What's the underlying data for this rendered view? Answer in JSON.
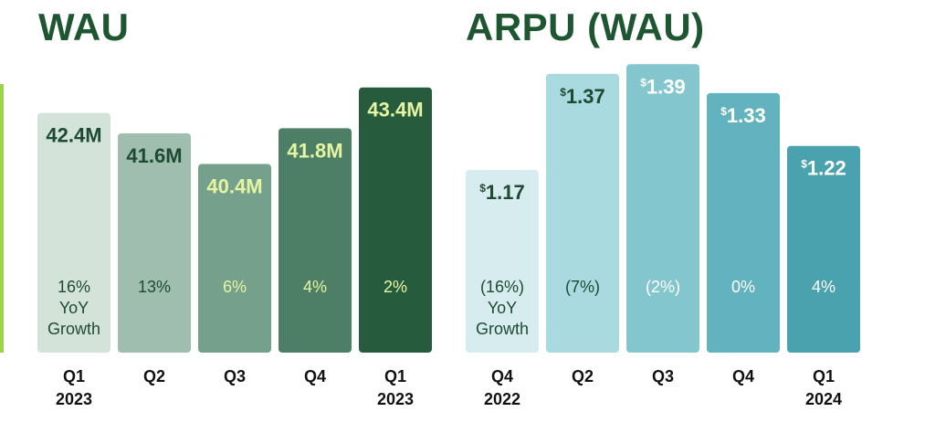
{
  "colors": {
    "title": "#1f5632",
    "accent_line": "#9bd34a",
    "wau_bars": [
      "#d4e3da",
      "#a0beb0",
      "#75a08b",
      "#4c7f66",
      "#265c3d"
    ],
    "wau_value_text": [
      "#1e4a33",
      "#1e4a33",
      "#e6f5a2",
      "#e6f5a2",
      "#e6f5a2"
    ],
    "wau_growth_text": [
      "#1e4a33",
      "#1e4a33",
      "#e6f5a2",
      "#e6f5a2",
      "#e6f5a2"
    ],
    "arpu_bars": [
      "#d6ecef",
      "#a9dae0",
      "#84c6ce",
      "#62b3bf",
      "#4aa2ae"
    ],
    "arpu_value_text": [
      "#1e4a33",
      "#1e4a33",
      "#ffffff",
      "#ffffff",
      "#ffffff"
    ],
    "arpu_growth_text": [
      "#1e4a33",
      "#1e4a33",
      "#ffffff",
      "#ffffff",
      "#ffffff"
    ]
  },
  "chart_data": [
    {
      "type": "bar",
      "title": "WAU",
      "categories": [
        "Q1\n2023",
        "Q2",
        "Q3",
        "Q4",
        "Q1\n2023"
      ],
      "values": [
        42.4,
        41.6,
        40.4,
        41.8,
        43.4
      ],
      "value_labels": [
        "42.4M",
        "41.6M",
        "40.4M",
        "41.8M",
        "43.4M"
      ],
      "growth_labels": [
        "16%\nYoY\nGrowth",
        "13%",
        "6%",
        "4%",
        "2%"
      ],
      "ylim": [
        33.0,
        44.5
      ],
      "grid": false
    },
    {
      "type": "bar",
      "title": "ARPU (WAU)",
      "categories": [
        "Q4\n2022",
        "Q2",
        "Q3",
        "Q4",
        "Q1\n2024"
      ],
      "values": [
        1.17,
        1.37,
        1.39,
        1.33,
        1.22
      ],
      "value_labels": [
        "1.17",
        "1.37",
        "1.39",
        "1.33",
        "1.22"
      ],
      "currency_symbol": "$",
      "growth_labels": [
        "(16%)\nYoY\nGrowth",
        "(7%)",
        "(2%)",
        "0%",
        "4%"
      ],
      "ylim": [
        0.79,
        1.4
      ],
      "grid": false
    }
  ]
}
